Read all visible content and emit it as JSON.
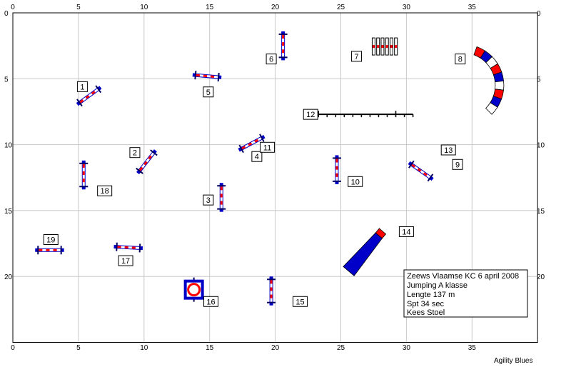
{
  "field": {
    "x_range": [
      0,
      40
    ],
    "y_range": [
      0,
      25
    ],
    "x_ticks": [
      0,
      5,
      10,
      15,
      20,
      25,
      30,
      35
    ],
    "y_ticks": [
      0,
      5,
      10,
      15,
      20
    ]
  },
  "info": {
    "lines": [
      "Zeews Vlaamse KC 6 april 2008",
      "Jumping A klasse",
      "Lengte 137 m",
      "Spt 34 sec",
      "Kees Stoel"
    ]
  },
  "credit": "Agility Blues",
  "numbers": [
    {
      "label": "1",
      "x": 5.3,
      "y": 5.6
    },
    {
      "label": "2",
      "x": 9.3,
      "y": 10.6
    },
    {
      "label": "3",
      "x": 14.9,
      "y": 14.2
    },
    {
      "label": "4",
      "x": 18.6,
      "y": 10.9
    },
    {
      "label": "5",
      "x": 14.9,
      "y": 6.0
    },
    {
      "label": "6",
      "x": 19.7,
      "y": 3.5
    },
    {
      "label": "7",
      "x": 26.2,
      "y": 3.3
    },
    {
      "label": "8",
      "x": 34.1,
      "y": 3.5
    },
    {
      "label": "9",
      "x": 33.9,
      "y": 11.5
    },
    {
      "label": "10",
      "x": 26.1,
      "y": 12.8
    },
    {
      "label": "11",
      "x": 19.4,
      "y": 10.2
    },
    {
      "label": "12",
      "x": 22.7,
      "y": 7.7
    },
    {
      "label": "13",
      "x": 33.2,
      "y": 10.4
    },
    {
      "label": "14",
      "x": 30.0,
      "y": 16.6
    },
    {
      "label": "15",
      "x": 21.9,
      "y": 21.9
    },
    {
      "label": "16",
      "x": 15.1,
      "y": 21.9
    },
    {
      "label": "17",
      "x": 8.6,
      "y": 18.8
    },
    {
      "label": "18",
      "x": 7.0,
      "y": 13.5
    },
    {
      "label": "19",
      "x": 2.9,
      "y": 17.2
    }
  ],
  "jumps": [
    {
      "id": "1",
      "cx": 5.8,
      "cy": 6.3,
      "angle": -36,
      "length": 2.2
    },
    {
      "id": "2",
      "cx": 10.2,
      "cy": 11.3,
      "angle": -52,
      "length": 2.2
    },
    {
      "id": "3",
      "cx": 15.9,
      "cy": 14.0,
      "angle": 90,
      "length": 2.2
    },
    {
      "id": "4",
      "cx": 18.2,
      "cy": 9.9,
      "angle": -28,
      "length": 2.2
    },
    {
      "id": "5",
      "cx": 14.8,
      "cy": 4.8,
      "angle": 5,
      "length": 2.2
    },
    {
      "id": "6",
      "cx": 20.6,
      "cy": 2.5,
      "angle": 90,
      "length": 2.2
    },
    {
      "id": "9",
      "cx": 31.1,
      "cy": 12.0,
      "angle": 35,
      "length": 2.2
    },
    {
      "id": "10",
      "cx": 24.7,
      "cy": 11.9,
      "angle": 90,
      "length": 2.2
    },
    {
      "id": "15",
      "cx": 19.7,
      "cy": 21.1,
      "angle": 90,
      "length": 2.2
    },
    {
      "id": "17",
      "cx": 8.8,
      "cy": 17.8,
      "angle": 3,
      "length": 2.2
    },
    {
      "id": "18",
      "cx": 5.4,
      "cy": 12.3,
      "angle": 90,
      "length": 2.2
    },
    {
      "id": "19",
      "cx": 2.8,
      "cy": 18.0,
      "angle": 0,
      "length": 2.2
    }
  ],
  "weaves": {
    "id": "12",
    "x1": 23.3,
    "x2": 30.5,
    "y": 7.7,
    "poles": 12
  },
  "spread": {
    "id": "7",
    "x": 27.5,
    "y": 1.9,
    "width": 1.7,
    "height": 1.3,
    "bars": 6
  },
  "tunnel": {
    "id": "8",
    "cx": 34.3,
    "cy": 5.5,
    "radius": 2.8,
    "start_deg": -70,
    "end_deg": 45,
    "segments": 9
  },
  "chute": {
    "id": "14",
    "x1": 25.6,
    "y1": 19.6,
    "x2": 27.9,
    "y2": 16.9,
    "segments": 4
  },
  "tyre": {
    "id": "16",
    "x": 13.8,
    "y": 21.0
  },
  "colors": {
    "grid": "#c8c8c8",
    "border": "#000000",
    "blue": "#0000c8",
    "red": "#ff0000",
    "navy": "#000060"
  }
}
